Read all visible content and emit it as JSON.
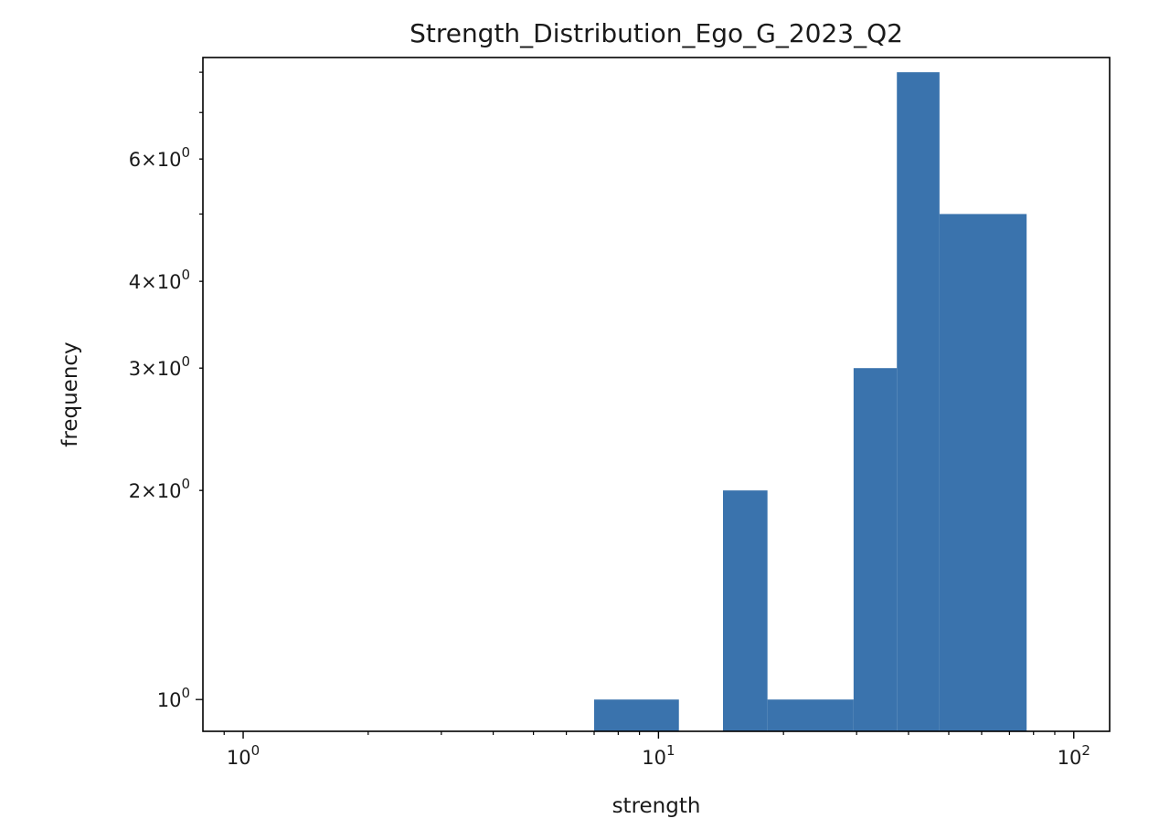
{
  "chart_data": {
    "type": "bar",
    "title": "Strength_Distribution_Ego_G_2023_Q2",
    "xlabel": "strength",
    "ylabel": "frequency",
    "x_scale": "log",
    "y_scale": "log",
    "xlim": [
      0.8,
      122
    ],
    "ylim": [
      0.9,
      8.4
    ],
    "bar_color": "#3a73ad",
    "grid": false,
    "legend": "none",
    "bins": [
      {
        "x0": 7.0,
        "x1": 11.2,
        "value": 1
      },
      {
        "x0": 14.3,
        "x1": 18.3,
        "value": 2
      },
      {
        "x0": 18.3,
        "x1": 29.5,
        "value": 1
      },
      {
        "x0": 29.5,
        "x1": 37.5,
        "value": 3
      },
      {
        "x0": 37.5,
        "x1": 47.5,
        "value": 8
      },
      {
        "x0": 47.5,
        "x1": 77.0,
        "value": 5
      }
    ],
    "x_ticks": [
      {
        "value": 1,
        "base": "10",
        "exp": "0"
      },
      {
        "value": 10,
        "base": "10",
        "exp": "1"
      },
      {
        "value": 100,
        "base": "10",
        "exp": "2"
      }
    ],
    "y_ticks": [
      {
        "value": 1,
        "mant": "",
        "base": "10",
        "exp": "0"
      },
      {
        "value": 2,
        "mant": "2",
        "base": "10",
        "exp": "0"
      },
      {
        "value": 3,
        "mant": "3",
        "base": "10",
        "exp": "0"
      },
      {
        "value": 4,
        "mant": "4",
        "base": "10",
        "exp": "0"
      },
      {
        "value": 6,
        "mant": "6",
        "base": "10",
        "exp": "0"
      }
    ],
    "y_minor_ticks": [
      5,
      7,
      8
    ]
  }
}
